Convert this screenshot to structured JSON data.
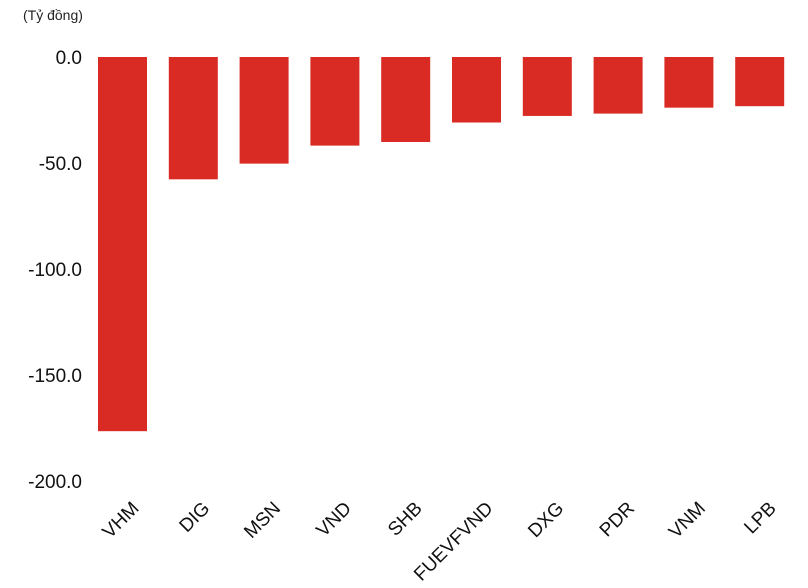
{
  "chart_data": {
    "type": "bar",
    "unit_label": "(Tỷ đồng)",
    "categories": [
      "VHM",
      "DIG",
      "MSN",
      "VND",
      "SHB",
      "FUEVFVND",
      "DXG",
      "PDR",
      "VNM",
      "LPB"
    ],
    "values": [
      -176.5,
      -57.7,
      -50.3,
      -41.8,
      -40.1,
      -30.9,
      -27.8,
      -26.7,
      -23.9,
      -23.2
    ],
    "yticks": [
      "0.0",
      "-50.0",
      "-100.0",
      "-150.0",
      "-200.0"
    ],
    "ylim": [
      -200,
      0
    ],
    "bar_color": "#d92b24",
    "grid": false,
    "legend": "none"
  }
}
